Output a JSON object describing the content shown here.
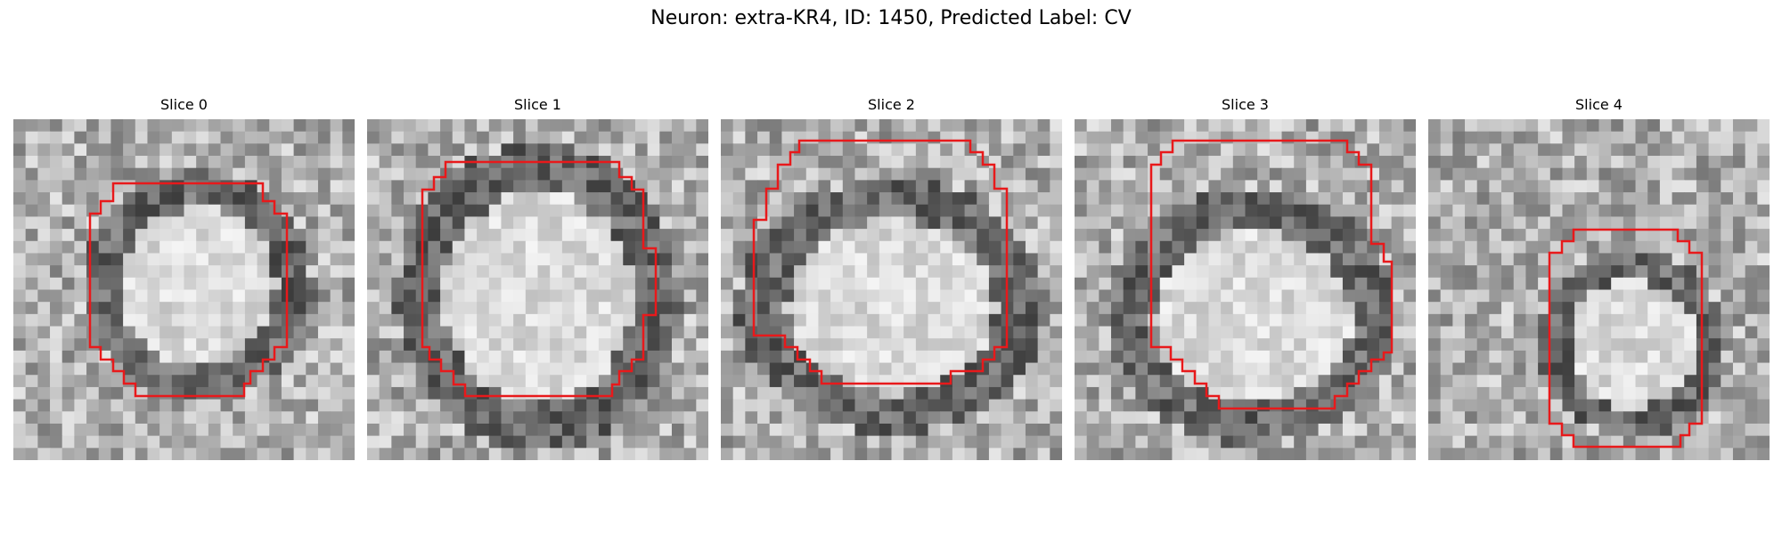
{
  "figure": {
    "title": "Neuron: extra-KR4, ID: 1450, Predicted Label: CV",
    "contour_color": "#e8191b"
  },
  "slices": [
    {
      "label": "Slice 0",
      "seed": 11,
      "center": [
        0.54,
        0.49
      ],
      "rx": 0.27,
      "ry": 0.27
    },
    {
      "label": "Slice 1",
      "seed": 23,
      "center": [
        0.5,
        0.52
      ],
      "rx": 0.33,
      "ry": 0.36
    },
    {
      "label": "Slice 2",
      "seed": 37,
      "center": [
        0.5,
        0.55
      ],
      "rx": 0.36,
      "ry": 0.3
    },
    {
      "label": "Slice 3",
      "seed": 41,
      "center": [
        0.52,
        0.58
      ],
      "rx": 0.34,
      "ry": 0.3
    },
    {
      "label": "Slice 4",
      "seed": 59,
      "center": [
        0.6,
        0.66
      ],
      "rx": 0.22,
      "ry": 0.22
    }
  ]
}
